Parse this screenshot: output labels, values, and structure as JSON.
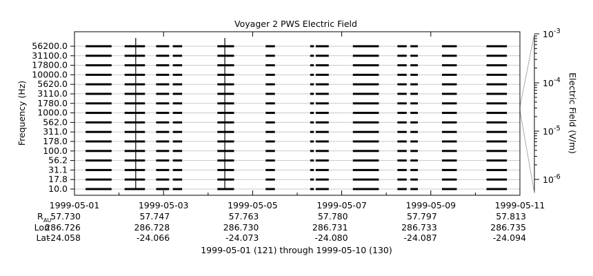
{
  "chart_data": {
    "type": "line",
    "title": "Voyager 2 PWS Electric Field",
    "ylabel": "Frequency (Hz)",
    "y2label": "Electric Field (V/m)",
    "xlabel": "1999-05-01 (121) through 1999-05-10 (130)",
    "channels": [
      "56200.0",
      "31100.0",
      "17800.0",
      "10000.0",
      "5620.0",
      "3110.0",
      "1780.0",
      "1000.0",
      "562.0",
      "311.0",
      "178.0",
      "100.0",
      "56.2",
      "31.1",
      "17.8",
      "10.0"
    ],
    "x_ticks": [
      "1999-05-01",
      "1999-05-03",
      "1999-05-05",
      "1999-05-07",
      "1999-05-09",
      "1999-05-11"
    ],
    "xlim": [
      "1999-05-01",
      "1999-05-11"
    ],
    "y2_ticks": [
      {
        "base": "10",
        "exp": "-3"
      },
      {
        "base": "10",
        "exp": "-4"
      },
      {
        "base": "10",
        "exp": "-5"
      },
      {
        "base": "10",
        "exp": "-6"
      }
    ],
    "y2_scale": "log",
    "grid": true,
    "data_segments": [
      [
        "1999-05-01 06:00",
        "1999-05-01 20:00"
      ],
      [
        "1999-05-02 03:00",
        "1999-05-02 14:00"
      ],
      [
        "1999-05-02 20:00",
        "1999-05-03 03:00"
      ],
      [
        "1999-05-03 05:00",
        "1999-05-03 10:00"
      ],
      [
        "1999-05-04 05:00",
        "1999-05-04 14:00"
      ],
      [
        "1999-05-05 07:00",
        "1999-05-05 12:00"
      ],
      [
        "1999-05-06 07:00",
        "1999-05-06 09:00"
      ],
      [
        "1999-05-06 10:00",
        "1999-05-06 17:00"
      ],
      [
        "1999-05-07 06:00",
        "1999-05-07 20:00"
      ],
      [
        "1999-05-08 06:00",
        "1999-05-08 11:00"
      ],
      [
        "1999-05-08 13:00",
        "1999-05-08 17:00"
      ],
      [
        "1999-05-09 06:00",
        "1999-05-09 14:00"
      ],
      [
        "1999-05-10 06:00",
        "1999-05-10 17:00"
      ]
    ],
    "spikes": [
      {
        "time": "1999-05-02 09:00",
        "from": "10.0",
        "to": "56200.0"
      },
      {
        "time": "1999-05-04 09:00",
        "from": "10.0",
        "to": "56200.0"
      }
    ],
    "ephemeris": {
      "labels": {
        "r": "R",
        "r_sub": "AU",
        "lon": "Lon",
        "lat": "Lat"
      },
      "r": [
        "57.730",
        "57.747",
        "57.763",
        "57.780",
        "57.797",
        "57.813"
      ],
      "lon": [
        "286.726",
        "286.728",
        "286.730",
        "286.731",
        "286.733",
        "286.735"
      ],
      "lat": [
        "-24.058",
        "-24.066",
        "-24.073",
        "-24.080",
        "-24.087",
        "-24.094"
      ]
    }
  }
}
